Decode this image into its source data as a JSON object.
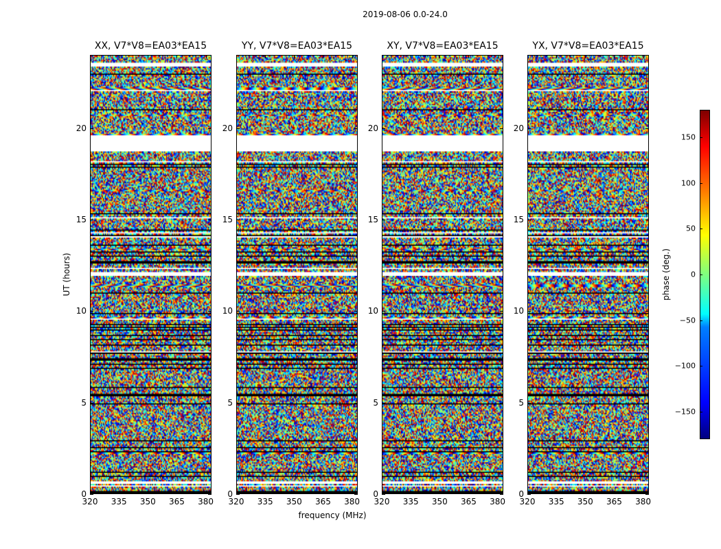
{
  "chart_data": {
    "type": "heatmap",
    "title": "2019-08-06 0.0-24.0",
    "colormap": "jet",
    "panels": [
      {
        "title": "XX, V7*V8=EA03*EA15"
      },
      {
        "title": "YY, V7*V8=EA03*EA15"
      },
      {
        "title": "XY, V7*V8=EA03*EA15"
      },
      {
        "title": "YX, V7*V8=EA03*EA15"
      }
    ],
    "xlabel": "frequency (MHz)",
    "ylabel": "UT (hours)",
    "xlim": [
      320,
      383
    ],
    "ylim": [
      0,
      24
    ],
    "xticks": [
      320,
      335,
      350,
      365,
      380
    ],
    "xtick_labels": [
      "320",
      "335",
      "350",
      "365",
      "380"
    ],
    "yticks": [
      0,
      5,
      10,
      15,
      20
    ],
    "ytick_labels": [
      "0",
      "5",
      "10",
      "15",
      "20"
    ],
    "flagged_intervals_hours": [
      [
        23.4,
        23.6
      ],
      [
        18.77,
        19.63
      ],
      [
        11.96,
        12.15
      ],
      [
        0.55,
        0.7
      ]
    ],
    "values_description_range": [
      -180,
      180
    ],
    "colorbar": {
      "label": "phase (deg.)",
      "range": [
        -180,
        180
      ],
      "ticks": [
        -150,
        -100,
        -50,
        0,
        50,
        100,
        150
      ],
      "tick_labels": [
        "−150",
        "−100",
        "−50",
        "0",
        "50",
        "100",
        "150"
      ]
    }
  }
}
